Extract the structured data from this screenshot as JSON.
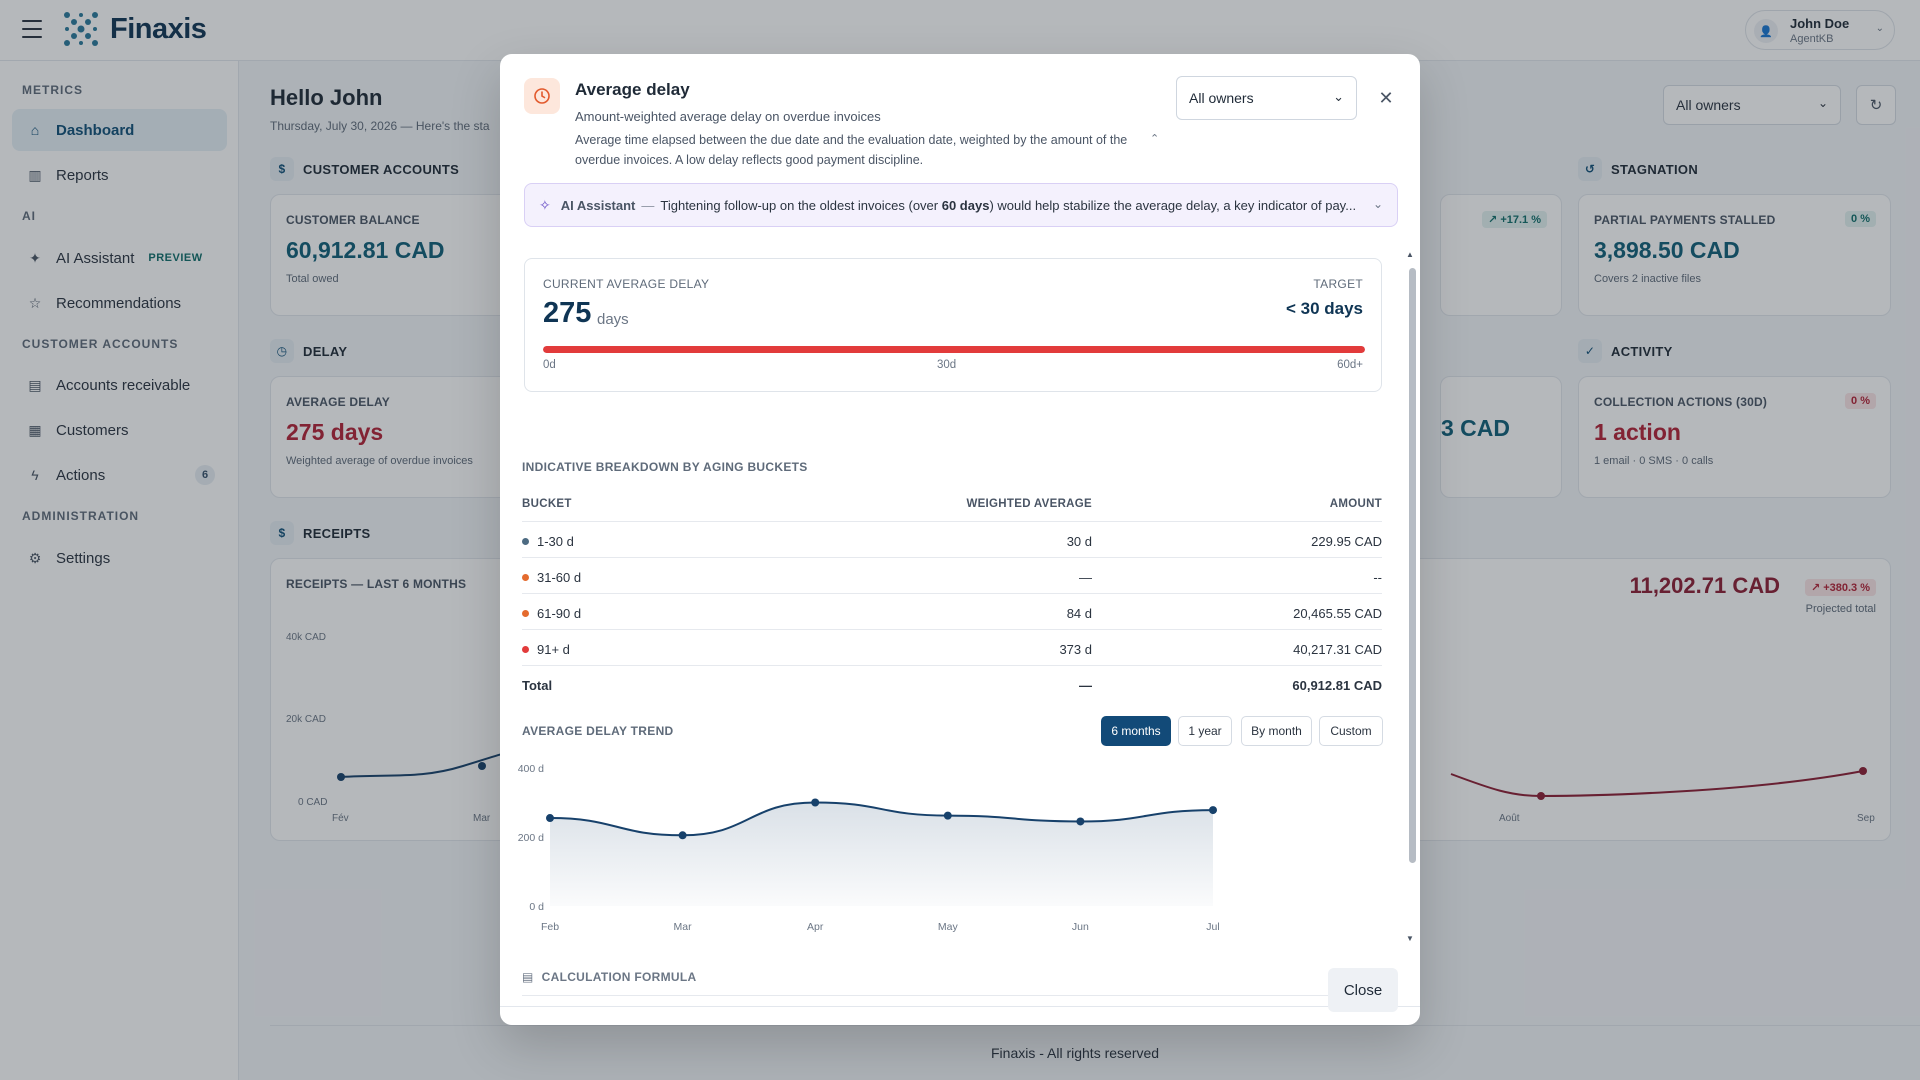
{
  "app": {
    "name": "Finaxis",
    "footer": "Finaxis - All rights reserved"
  },
  "user": {
    "name": "John Doe",
    "org": "AgentKB"
  },
  "sidebar": {
    "sections": [
      {
        "title": "METRICS"
      },
      {
        "title": "AI"
      },
      {
        "title": "CUSTOMER ACCOUNTS"
      },
      {
        "title": "ADMINISTRATION"
      }
    ],
    "items": [
      {
        "label": "Dashboard",
        "icon": "home-icon"
      },
      {
        "label": "Reports",
        "icon": "bar-chart-icon"
      },
      {
        "label": "AI Assistant",
        "icon": "sparkle-icon",
        "badge": "PREVIEW"
      },
      {
        "label": "Recommendations",
        "icon": "star-icon"
      },
      {
        "label": "Accounts receivable",
        "icon": "document-icon"
      },
      {
        "label": "Customers",
        "icon": "building-icon"
      },
      {
        "label": "Actions",
        "icon": "lightning-icon",
        "count": "6"
      },
      {
        "label": "Settings",
        "icon": "gear-icon"
      }
    ]
  },
  "page": {
    "greeting": "Hello John",
    "date_line": "Thursday, July 30, 2026 — Here's the sta",
    "owner_filter": "All owners",
    "sections": {
      "customer_accounts": "CUSTOMER ACCOUNTS",
      "stagnation": "STAGNATION",
      "delay": "DELAY",
      "activity": "ACTIVITY",
      "receipts": "RECEIPTS"
    },
    "cards": {
      "customer_balance": {
        "label": "CUSTOMER BALANCE",
        "value": "60,912.81 CAD",
        "sub": "Total owed"
      },
      "hidden_growth": {
        "badge": "↗ +17.1 %"
      },
      "partial_payments": {
        "label": "PARTIAL PAYMENTS STALLED",
        "value": "3,898.50 CAD",
        "sub": "Covers 2 inactive files",
        "badge": "0 %"
      },
      "average_delay": {
        "label": "AVERAGE DELAY",
        "value": "275 days",
        "sub": "Weighted average of overdue invoices"
      },
      "hidden_amount": {
        "value": "3 CAD"
      },
      "collection_actions": {
        "label": "COLLECTION ACTIONS (30D)",
        "value": "1 action",
        "sub": "1 email · 0 SMS · 0 calls",
        "badge": "0 %"
      },
      "receipts": {
        "label": "RECEIPTS — LAST 6 MONTHS",
        "projected_value": "11,202.71 CAD",
        "projected_badge": "↗ +380.3 %",
        "projected_sub": "Projected total",
        "y_ticks": [
          "40k CAD",
          "20k CAD",
          "0 CAD"
        ],
        "x_ticks_left": [
          "Fév",
          "Mar"
        ],
        "x_ticks_right": [
          "Août",
          "Sep"
        ]
      }
    }
  },
  "modal": {
    "title": "Average delay",
    "subtitle": "Amount-weighted average delay on overdue invoices",
    "description": "Average time elapsed between the due date and the evaluation date, weighted by the amount of the overdue invoices. A low delay reflects good payment discipline.",
    "owner_select": "All owners",
    "ai": {
      "label": "AI Assistant",
      "text_before": "Tightening follow-up on the oldest invoices (over ",
      "text_bold": "60 days",
      "text_after": ") would help stabilize the average delay, a key indicator of pay..."
    },
    "current": {
      "label": "CURRENT AVERAGE DELAY",
      "value": "275",
      "unit": "days",
      "target_label": "TARGET",
      "target_value": "< 30 days",
      "bar_fill_fraction": 1.0,
      "ticks": [
        "0d",
        "30d",
        "60d+"
      ]
    },
    "breakdown": {
      "title": "INDICATIVE BREAKDOWN BY AGING BUCKETS",
      "headers": [
        "BUCKET",
        "WEIGHTED AVERAGE",
        "AMOUNT"
      ],
      "rows": [
        {
          "bucket": "1-30 d",
          "avg": "30 d",
          "amount": "229.95 CAD",
          "color": "#4d6b82"
        },
        {
          "bucket": "31-60 d",
          "avg": "—",
          "amount": "--",
          "color": "#e46b2e"
        },
        {
          "bucket": "61-90 d",
          "avg": "84 d",
          "amount": "20,465.55 CAD",
          "color": "#e46b2e"
        },
        {
          "bucket": "91+ d",
          "avg": "373 d",
          "amount": "40,217.31 CAD",
          "color": "#e23b3b"
        }
      ],
      "total": {
        "label": "Total",
        "avg": "—",
        "amount": "60,912.81 CAD"
      }
    },
    "trend": {
      "title": "AVERAGE DELAY TREND",
      "ranges": [
        "6 months",
        "1 year",
        "By month",
        "Custom"
      ],
      "active_range": "6 months"
    },
    "formula_title": "CALCULATION FORMULA",
    "close_label": "Close"
  },
  "chart_data": {
    "type": "area",
    "title": "AVERAGE DELAY TREND",
    "x": [
      "Feb",
      "Mar",
      "Apr",
      "May",
      "Jun",
      "Jul"
    ],
    "values": [
      255,
      205,
      300,
      262,
      245,
      278
    ],
    "y_ticks": [
      "0 d",
      "200 d",
      "400 d"
    ],
    "ylim": [
      0,
      400
    ],
    "line_color": "#17416b",
    "grid": false
  }
}
